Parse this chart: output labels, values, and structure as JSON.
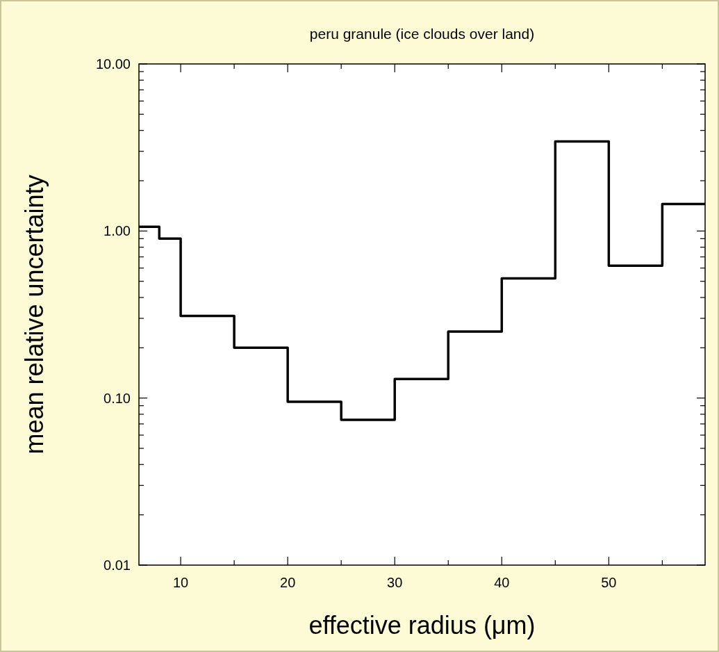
{
  "chart_data": {
    "type": "step",
    "title": "peru granule (ice clouds over land)",
    "xlabel": "effective radius (μm)",
    "ylabel": "mean relative uncertainty",
    "x": [
      6.1,
      8,
      10,
      15,
      20,
      25,
      30,
      35,
      40,
      45,
      50,
      55,
      59
    ],
    "series": [
      {
        "color": "#000000",
        "values": [
          1.06,
          0.9,
          0.31,
          0.2,
          0.095,
          0.074,
          0.13,
          0.25,
          0.52,
          3.44,
          0.62,
          1.45,
          1.45
        ]
      }
    ],
    "xlim": [
      6.1,
      59
    ],
    "xticks": [
      10,
      {
        "value": 15,
        "label": null
      },
      20,
      {
        "value": 25,
        "label": null
      },
      30,
      {
        "value": 35,
        "label": null
      },
      40,
      {
        "value": 45,
        "label": null
      },
      50,
      {
        "value": 55,
        "label": null
      }
    ],
    "ylim": [
      0.01,
      10
    ],
    "log": "y",
    "yticks": [
      {
        "value": 0.01,
        "label": "0.01"
      },
      {
        "value": 0.02,
        "label": null
      },
      {
        "value": 0.03,
        "label": null
      },
      {
        "value": 0.04,
        "label": null
      },
      {
        "value": 0.05,
        "label": null
      },
      {
        "value": 0.06,
        "label": null
      },
      {
        "value": 0.07,
        "label": null
      },
      {
        "value": 0.08,
        "label": null
      },
      {
        "value": 0.09,
        "label": null
      },
      {
        "value": 0.1,
        "label": "0.10"
      },
      {
        "value": 0.2,
        "label": null
      },
      {
        "value": 0.3,
        "label": null
      },
      {
        "value": 0.4,
        "label": null
      },
      {
        "value": 0.5,
        "label": null
      },
      {
        "value": 0.6,
        "label": null
      },
      {
        "value": 0.7,
        "label": null
      },
      {
        "value": 0.8,
        "label": null
      },
      {
        "value": 0.9,
        "label": null
      },
      {
        "value": 1,
        "label": "1.00"
      },
      {
        "value": 2,
        "label": null
      },
      {
        "value": 3,
        "label": null
      },
      {
        "value": 4,
        "label": null
      },
      {
        "value": 5,
        "label": null
      },
      {
        "value": 6,
        "label": null
      },
      {
        "value": 7,
        "label": null
      },
      {
        "value": 8,
        "label": null
      },
      {
        "value": 9,
        "label": null
      },
      {
        "value": 10,
        "label": "10.00"
      }
    ],
    "grid": false,
    "line_style": "solid",
    "marker": "none"
  }
}
